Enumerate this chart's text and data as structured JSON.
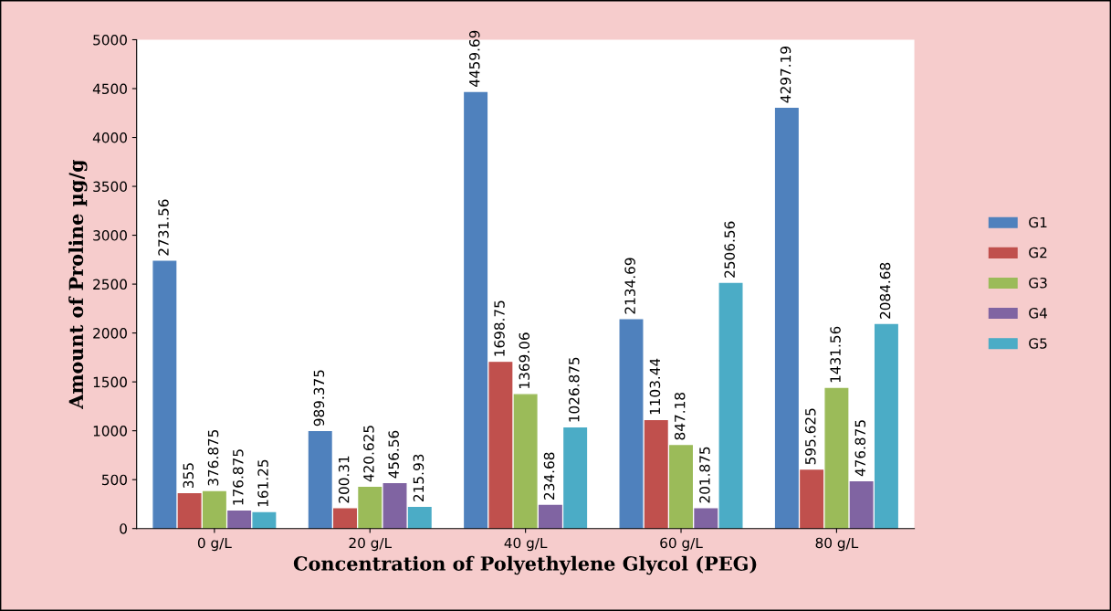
{
  "chart_data": {
    "type": "bar",
    "xlabel": "Concentration of Polyethylene Glycol (PEG)",
    "ylabel": "Amount of Proline µg/g",
    "categories": [
      "0 g/L",
      "20 g/L",
      "40 g/L",
      "60 g/L",
      "80 g/L"
    ],
    "series": [
      {
        "name": "G1",
        "color": "#4f81bd",
        "values": [
          2731.56,
          989.375,
          4459.69,
          2134.69,
          4297.19
        ]
      },
      {
        "name": "G2",
        "color": "#c0504d",
        "values": [
          355,
          200.31,
          1698.75,
          1103.44,
          595.625
        ]
      },
      {
        "name": "G3",
        "color": "#9bbb59",
        "values": [
          376.875,
          420.625,
          1369.06,
          847.18,
          1431.56
        ]
      },
      {
        "name": "G4",
        "color": "#8064a2",
        "values": [
          176.875,
          456.56,
          234.68,
          201.875,
          476.875
        ]
      },
      {
        "name": "G5",
        "color": "#4bacc6",
        "values": [
          161.25,
          215.93,
          1026.875,
          2506.56,
          2084.68
        ]
      }
    ],
    "ylim": [
      0,
      5000
    ],
    "yticks": [
      0,
      500,
      1000,
      1500,
      2000,
      2500,
      3000,
      3500,
      4000,
      4500,
      5000
    ],
    "grid": false,
    "legend": "right",
    "data_labels": true
  }
}
